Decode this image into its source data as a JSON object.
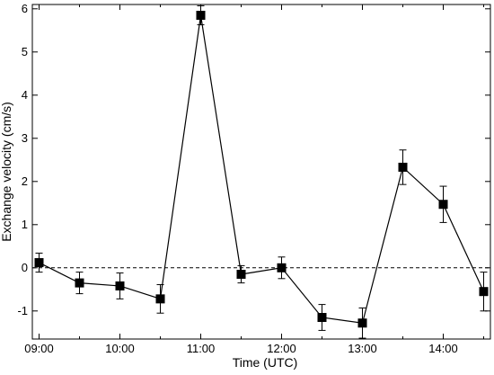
{
  "chart_data": {
    "type": "line",
    "title": "",
    "xlabel": "Time (UTC)",
    "ylabel": "Exchange velocity (cm/s)",
    "x_ticks": [
      "09:00",
      "10:00",
      "11:00",
      "12:00",
      "13:00",
      "14:00"
    ],
    "y_ticks": [
      "-1",
      "0",
      "1",
      "2",
      "3",
      "4",
      "5",
      "6"
    ],
    "xlim": [
      "08:55",
      "14:35"
    ],
    "ylim": [
      -1.65,
      6.1
    ],
    "reference_line": {
      "y": 0,
      "style": "dashed"
    },
    "grid": false,
    "series": [
      {
        "marker": "square",
        "x": [
          "09:00",
          "09:30",
          "10:00",
          "10:30",
          "11:00",
          "11:30",
          "12:00",
          "12:30",
          "13:00",
          "13:30",
          "14:00",
          "14:30"
        ],
        "values": [
          0.12,
          -0.35,
          -0.42,
          -0.72,
          5.85,
          -0.15,
          0.0,
          -1.15,
          -1.28,
          2.33,
          1.47,
          -0.55
        ],
        "errors": [
          0.22,
          0.25,
          0.3,
          0.33,
          0.22,
          0.2,
          0.25,
          0.3,
          0.35,
          0.4,
          0.42,
          0.45
        ]
      }
    ]
  }
}
